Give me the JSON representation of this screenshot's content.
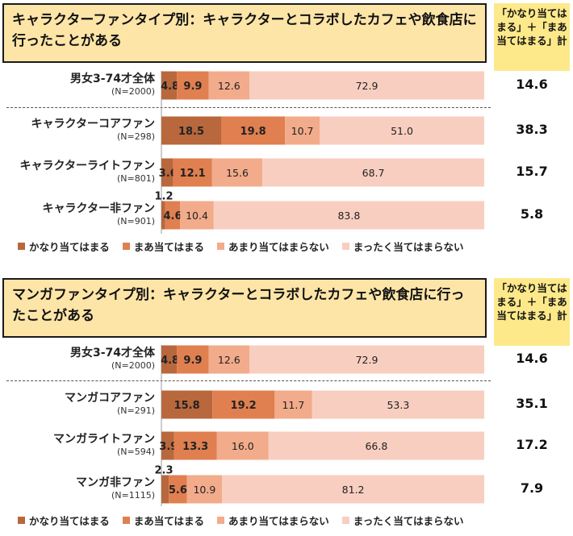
{
  "colors": {
    "s1": "#b8683c",
    "s2": "#e07f4f",
    "s3": "#f2ab8b",
    "s4": "#f8cec0",
    "title_bg": "#fde5a8",
    "sum_bg": "#fde98a"
  },
  "legend": [
    "かなり当てはまる",
    "まあ当てはまる",
    "あまり当てはまらない",
    "まったく当てはまらない"
  ],
  "chart_data": [
    {
      "type": "bar",
      "stacked": true,
      "orientation": "horizontal",
      "title": "キャラクターファンタイプ別：キャラクターとコラボしたカフェや飲食店に行ったことがある",
      "sum_header": "「かなり当てはまる」＋「まあ当てはまる」計",
      "series_names": [
        "かなり当てはまる",
        "まあ当てはまる",
        "あまり当てはまらない",
        "まったく当てはまらない"
      ],
      "rows": [
        {
          "name": "男女3-74才全体",
          "n": "(N=2000)",
          "values": [
            4.8,
            9.9,
            12.6,
            72.9
          ],
          "labels": [
            "4.8",
            "9.9",
            "12.6",
            "72.9"
          ],
          "sum": "14.6"
        },
        {
          "name": "キャラクターコアファン",
          "n": "(N=298)",
          "values": [
            18.5,
            19.8,
            10.7,
            51.0
          ],
          "labels": [
            "18.5",
            "19.8",
            "10.7",
            "51.0"
          ],
          "sum": "38.3"
        },
        {
          "name": "キャラクターライトファン",
          "n": "(N=801)",
          "values": [
            3.6,
            12.1,
            15.6,
            68.7
          ],
          "labels": [
            "3.6",
            "12.1",
            "15.6",
            "68.7"
          ],
          "sum": "15.7"
        },
        {
          "name": "キャラクター非ファン",
          "n": "(N=901)",
          "values": [
            1.2,
            4.6,
            10.4,
            83.8
          ],
          "labels": [
            "1.2",
            "4.6",
            "10.4",
            "83.8"
          ],
          "sum": "5.8"
        }
      ]
    },
    {
      "type": "bar",
      "stacked": true,
      "orientation": "horizontal",
      "title": "マンガファンタイプ別：キャラクターとコラボしたカフェや飲食店に行ったことがある",
      "sum_header": "「かなり当てはまる」＋「まあ当てはまる」計",
      "series_names": [
        "かなり当てはまる",
        "まあ当てはまる",
        "あまり当てはまらない",
        "まったく当てはまらない"
      ],
      "rows": [
        {
          "name": "男女3-74才全体",
          "n": "(N=2000)",
          "values": [
            4.8,
            9.9,
            12.6,
            72.9
          ],
          "labels": [
            "4.8",
            "9.9",
            "12.6",
            "72.9"
          ],
          "sum": "14.6"
        },
        {
          "name": "マンガコアファン",
          "n": "(N=291)",
          "values": [
            15.8,
            19.2,
            11.7,
            53.3
          ],
          "labels": [
            "15.8",
            "19.2",
            "11.7",
            "53.3"
          ],
          "sum": "35.1"
        },
        {
          "name": "マンガライトファン",
          "n": "(N=594)",
          "values": [
            3.9,
            13.3,
            16.0,
            66.8
          ],
          "labels": [
            "3.9",
            "13.3",
            "16.0",
            "66.8"
          ],
          "sum": "17.2"
        },
        {
          "name": "マンガ非ファン",
          "n": "(N=1115)",
          "values": [
            2.3,
            5.6,
            10.9,
            81.2
          ],
          "labels": [
            "2.3",
            "5.6",
            "10.9",
            "81.2"
          ],
          "sum": "7.9"
        }
      ]
    }
  ]
}
